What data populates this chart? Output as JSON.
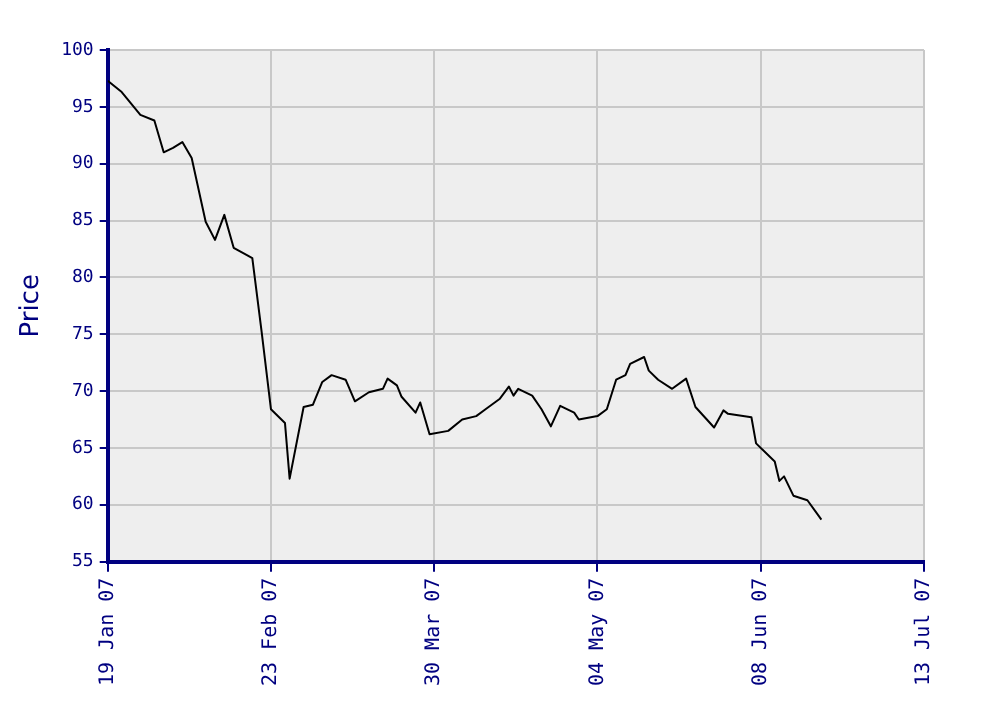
{
  "chart_data": {
    "type": "line",
    "ylabel": "Price",
    "x": [
      "2007-01-19",
      "2007-01-22",
      "2007-01-26",
      "2007-01-29",
      "2007-01-31",
      "2007-02-02",
      "2007-02-04",
      "2007-02-06",
      "2007-02-09",
      "2007-02-11",
      "2007-02-13",
      "2007-02-15",
      "2007-02-19",
      "2007-02-21",
      "2007-02-23",
      "2007-02-26",
      "2007-02-27",
      "2007-03-02",
      "2007-03-04",
      "2007-03-06",
      "2007-03-08",
      "2007-03-11",
      "2007-03-13",
      "2007-03-16",
      "2007-03-19",
      "2007-03-20",
      "2007-03-22",
      "2007-03-23",
      "2007-03-26",
      "2007-03-27",
      "2007-03-29",
      "2007-04-02",
      "2007-04-05",
      "2007-04-08",
      "2007-04-10",
      "2007-04-13",
      "2007-04-15",
      "2007-04-16",
      "2007-04-17",
      "2007-04-20",
      "2007-04-22",
      "2007-04-24",
      "2007-04-26",
      "2007-04-29",
      "2007-04-30",
      "2007-05-04",
      "2007-05-06",
      "2007-05-08",
      "2007-05-10",
      "2007-05-11",
      "2007-05-14",
      "2007-05-15",
      "2007-05-17",
      "2007-05-20",
      "2007-05-23",
      "2007-05-25",
      "2007-05-29",
      "2007-05-31",
      "2007-06-01",
      "2007-06-06",
      "2007-06-07",
      "2007-06-11",
      "2007-06-12",
      "2007-06-13",
      "2007-06-15",
      "2007-06-18",
      "2007-06-21"
    ],
    "series": [
      {
        "color": "#000000",
        "values": [
          97.3,
          96.3,
          94.3,
          93.8,
          91.0,
          91.4,
          91.9,
          90.5,
          84.9,
          83.3,
          85.5,
          82.6,
          81.7,
          75.2,
          68.4,
          67.2,
          62.3,
          68.6,
          68.8,
          70.8,
          71.4,
          71.0,
          69.1,
          69.9,
          70.2,
          71.1,
          70.5,
          69.5,
          68.1,
          69.0,
          66.2,
          66.5,
          67.5,
          67.8,
          68.4,
          69.3,
          70.4,
          69.6,
          70.2,
          69.6,
          68.4,
          66.9,
          68.7,
          68.1,
          67.5,
          67.8,
          68.4,
          71.0,
          71.4,
          72.4,
          73.0,
          71.8,
          71.0,
          70.2,
          71.1,
          68.6,
          66.8,
          68.3,
          68.0,
          67.7,
          65.4,
          63.8,
          62.1,
          62.5,
          60.8,
          60.4,
          58.7
        ]
      }
    ],
    "xlim": [
      "2007-01-19",
      "2007-07-13"
    ],
    "xticks": [
      {
        "value": "2007-01-19",
        "label": "19 Jan 07"
      },
      {
        "value": "2007-02-23",
        "label": "23 Feb 07"
      },
      {
        "value": "2007-03-30",
        "label": "30 Mar 07"
      },
      {
        "value": "2007-05-04",
        "label": "04 May 07"
      },
      {
        "value": "2007-06-08",
        "label": "08 Jun 07"
      },
      {
        "value": "2007-07-13",
        "label": "13 Jul 07"
      }
    ],
    "ylim": [
      55,
      100
    ],
    "yticks": [
      55,
      60,
      65,
      70,
      75,
      80,
      85,
      90,
      95,
      100
    ],
    "grid": true,
    "legend": false,
    "marker": "none",
    "line_style": "solid"
  }
}
